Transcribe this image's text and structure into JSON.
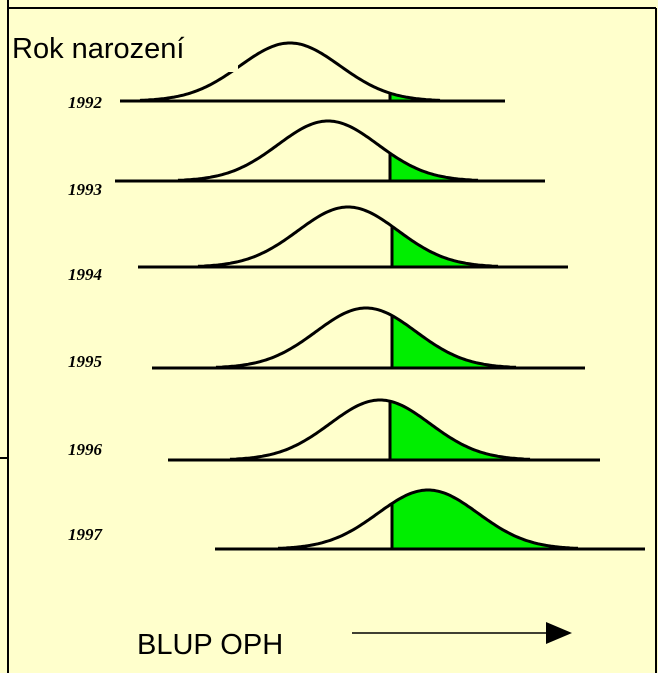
{
  "title": "Rok narození",
  "years": [
    "1992",
    "1993",
    "1994",
    "1995",
    "1996",
    "1997"
  ],
  "axis_label": "BLUP OPH"
}
